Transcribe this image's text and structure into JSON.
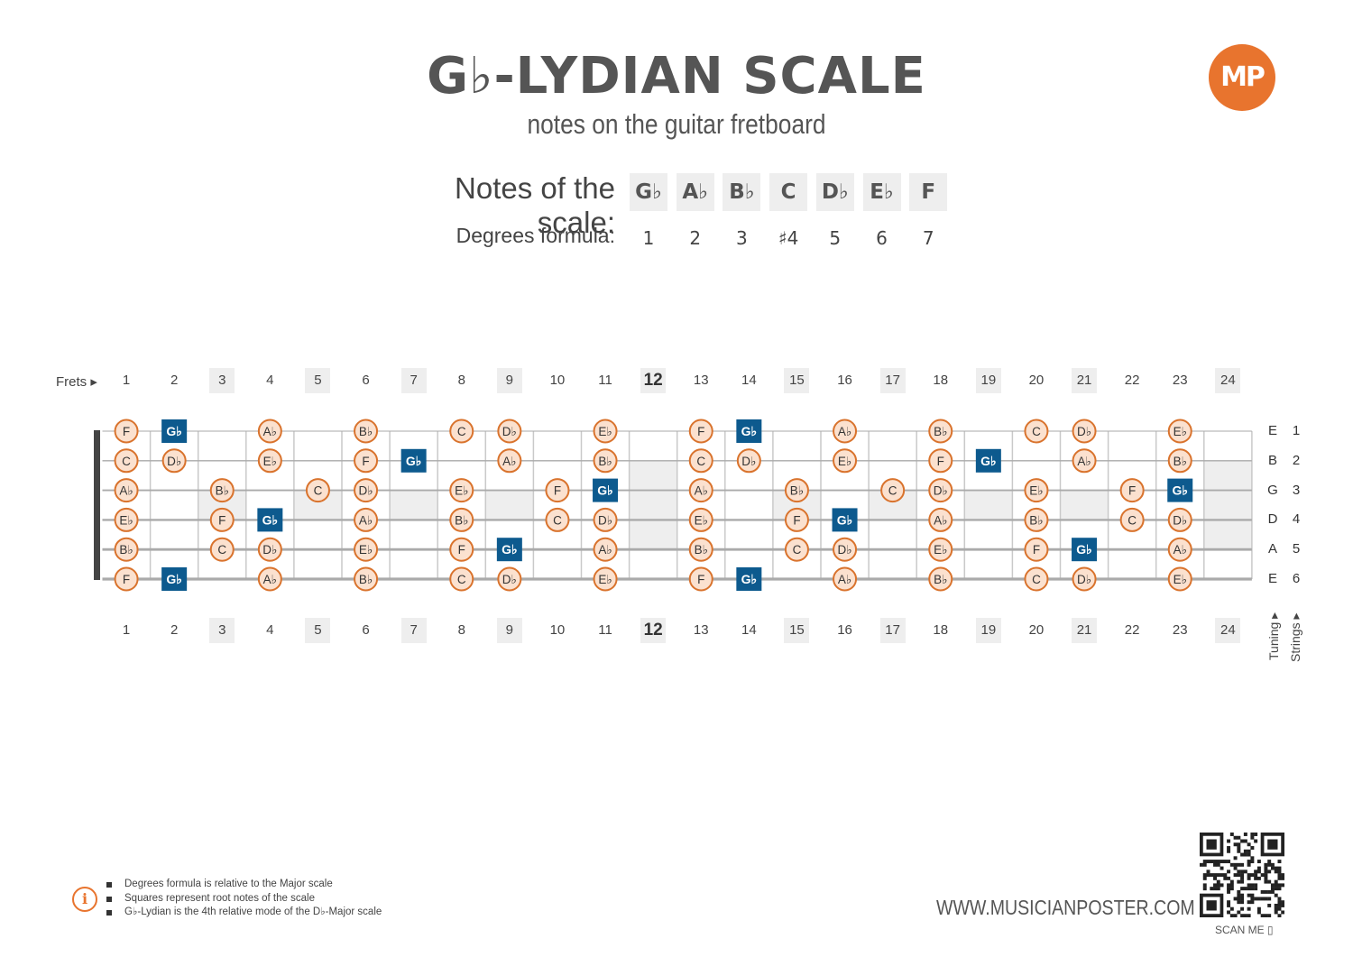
{
  "header": {
    "title": "G♭-LYDIAN SCALE",
    "subtitle": "notes on the guitar fretboard",
    "logo": "MP"
  },
  "scale": {
    "notes_label": "Notes of the scale:",
    "degrees_label": "Degrees formula:",
    "notes": [
      "G♭",
      "A♭",
      "B♭",
      "C",
      "D♭",
      "E♭",
      "F"
    ],
    "degrees": [
      "1",
      "2",
      "3",
      "♯4",
      "5",
      "6",
      "7"
    ]
  },
  "fretboard": {
    "frets_label": "Frets ▸",
    "fret_numbers": [
      "1",
      "2",
      "3",
      "4",
      "5",
      "6",
      "7",
      "8",
      "9",
      "10",
      "11",
      "12",
      "13",
      "14",
      "15",
      "16",
      "17",
      "18",
      "19",
      "20",
      "21",
      "22",
      "23",
      "24"
    ],
    "marker_frets": [
      3,
      5,
      7,
      9,
      12,
      15,
      17,
      19,
      21,
      24
    ],
    "double_marker_frets": [
      12,
      24
    ],
    "strings": [
      {
        "tuning": "E",
        "number": "1"
      },
      {
        "tuning": "B",
        "number": "2"
      },
      {
        "tuning": "G",
        "number": "3"
      },
      {
        "tuning": "D",
        "number": "4"
      },
      {
        "tuning": "A",
        "number": "5"
      },
      {
        "tuning": "E",
        "number": "6"
      }
    ],
    "tuning_label": "Tuning ▸",
    "strings_label": "Strings ▸",
    "root": "G♭",
    "colors": {
      "root_fill": "#0d5a8e",
      "note_fill": "#fbe1cf",
      "note_border": "#d9732d",
      "marker": "#eeeeee",
      "string": "#aaaaaa",
      "nut": "#444444"
    },
    "positions": [
      [
        "F",
        "G♭",
        "",
        "A♭",
        "",
        "B♭",
        "",
        "C",
        "D♭",
        "",
        "E♭",
        "",
        "F",
        "G♭",
        "",
        "A♭",
        "",
        "B♭",
        "",
        "C",
        "D♭",
        "",
        "E♭",
        ""
      ],
      [
        "C",
        "D♭",
        "",
        "E♭",
        "",
        "F",
        "G♭",
        "",
        "A♭",
        "",
        "B♭",
        "",
        "C",
        "D♭",
        "",
        "E♭",
        "",
        "F",
        "G♭",
        "",
        "A♭",
        "",
        "B♭",
        ""
      ],
      [
        "A♭",
        "",
        "B♭",
        "",
        "C",
        "D♭",
        "",
        "E♭",
        "",
        "F",
        "G♭",
        "",
        "A♭",
        "",
        "B♭",
        "",
        "C",
        "D♭",
        "",
        "E♭",
        "",
        "F",
        "G♭",
        ""
      ],
      [
        "E♭",
        "",
        "F",
        "G♭",
        "",
        "A♭",
        "",
        "B♭",
        "",
        "C",
        "D♭",
        "",
        "E♭",
        "",
        "F",
        "G♭",
        "",
        "A♭",
        "",
        "B♭",
        "",
        "C",
        "D♭",
        ""
      ],
      [
        "B♭",
        "",
        "C",
        "D♭",
        "",
        "E♭",
        "",
        "F",
        "G♭",
        "",
        "A♭",
        "",
        "B♭",
        "",
        "C",
        "D♭",
        "",
        "E♭",
        "",
        "F",
        "G♭",
        "",
        "A♭",
        ""
      ],
      [
        "F",
        "G♭",
        "",
        "A♭",
        "",
        "B♭",
        "",
        "C",
        "D♭",
        "",
        "E♭",
        "",
        "F",
        "G♭",
        "",
        "A♭",
        "",
        "B♭",
        "",
        "C",
        "D♭",
        "",
        "E♭",
        ""
      ]
    ]
  },
  "footer": {
    "info_icon": "i",
    "notes": [
      "Degrees formula is relative to the Major scale",
      "Squares represent root notes of the scale",
      "G♭-Lydian is the 4th relative mode of the D♭-Major scale"
    ],
    "url": "WWW.MUSICIANPOSTER.COM",
    "scan": "SCAN ME ▯"
  }
}
